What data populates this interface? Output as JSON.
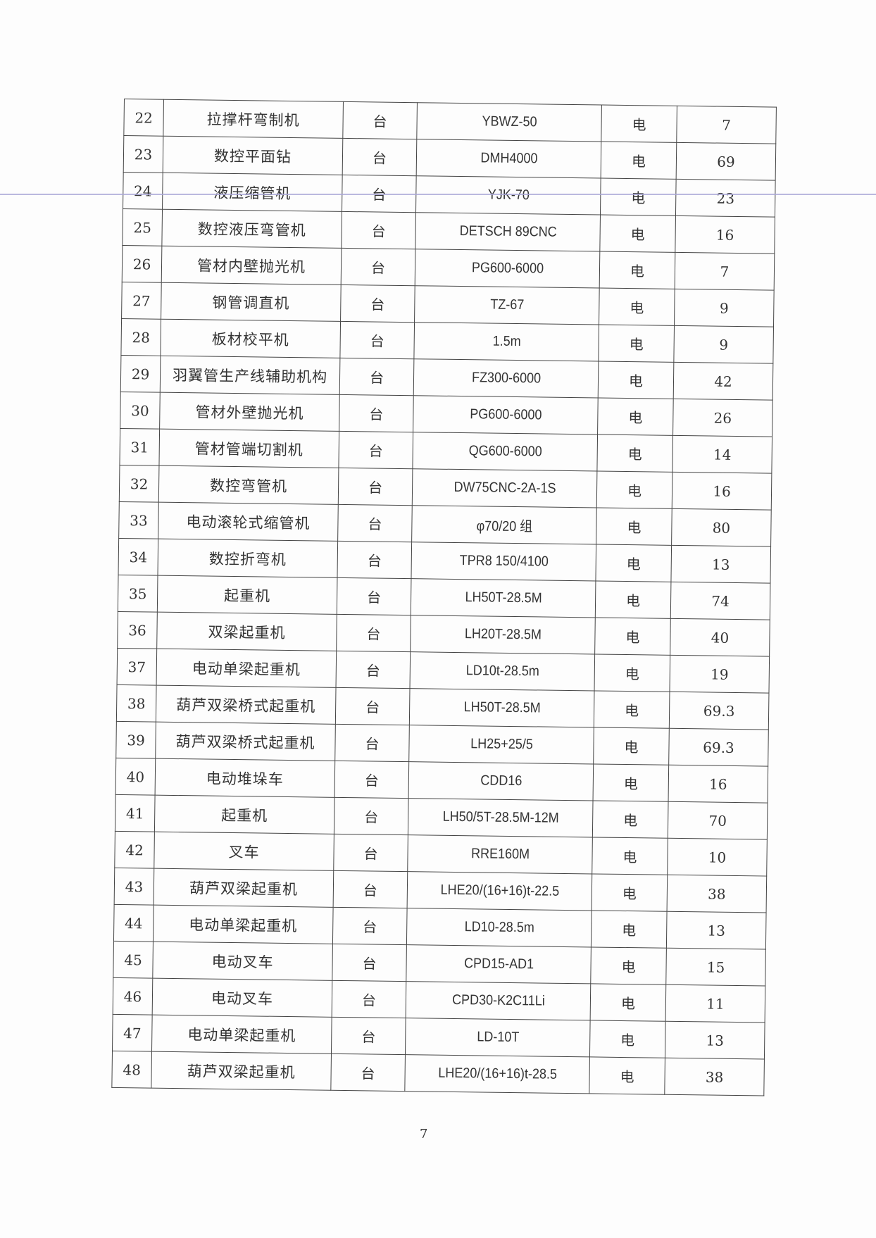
{
  "table": {
    "rows": [
      [
        "22",
        "拉撑杆弯制机",
        "台",
        "YBWZ-50",
        "电",
        "7"
      ],
      [
        "23",
        "数控平面钻",
        "台",
        "DMH4000",
        "电",
        "69"
      ],
      [
        "24",
        "液压缩管机",
        "台",
        "YJK-70",
        "电",
        "23"
      ],
      [
        "25",
        "数控液压弯管机",
        "台",
        "DETSCH 89CNC",
        "电",
        "16"
      ],
      [
        "26",
        "管材内壁抛光机",
        "台",
        "PG600-6000",
        "电",
        "7"
      ],
      [
        "27",
        "钢管调直机",
        "台",
        "TZ-67",
        "电",
        "9"
      ],
      [
        "28",
        "板材校平机",
        "台",
        "1.5m",
        "电",
        "9"
      ],
      [
        "29",
        "羽翼管生产线辅助机构",
        "台",
        "FZ300-6000",
        "电",
        "42"
      ],
      [
        "30",
        "管材外壁抛光机",
        "台",
        "PG600-6000",
        "电",
        "26"
      ],
      [
        "31",
        "管材管端切割机",
        "台",
        "QG600-6000",
        "电",
        "14"
      ],
      [
        "32",
        "数控弯管机",
        "台",
        "DW75CNC-2A-1S",
        "电",
        "16"
      ],
      [
        "33",
        "电动滚轮式缩管机",
        "台",
        "φ70/20 组",
        "电",
        "80"
      ],
      [
        "34",
        "数控折弯机",
        "台",
        "TPR8 150/4100",
        "电",
        "13"
      ],
      [
        "35",
        "起重机",
        "台",
        "LH50T-28.5M",
        "电",
        "74"
      ],
      [
        "36",
        "双梁起重机",
        "台",
        "LH20T-28.5M",
        "电",
        "40"
      ],
      [
        "37",
        "电动单梁起重机",
        "台",
        "LD10t-28.5m",
        "电",
        "19"
      ],
      [
        "38",
        "葫芦双梁桥式起重机",
        "台",
        "LH50T-28.5M",
        "电",
        "69.3"
      ],
      [
        "39",
        "葫芦双梁桥式起重机",
        "台",
        "LH25+25/5",
        "电",
        "69.3"
      ],
      [
        "40",
        "电动堆垛车",
        "台",
        "CDD16",
        "电",
        "16"
      ],
      [
        "41",
        "起重机",
        "台",
        "LH50/5T-28.5M-12M",
        "电",
        "70"
      ],
      [
        "42",
        "叉车",
        "台",
        "RRE160M",
        "电",
        "10"
      ],
      [
        "43",
        "葫芦双梁起重机",
        "台",
        "LHE20/(16+16)t-22.5",
        "电",
        "38"
      ],
      [
        "44",
        "电动单梁起重机",
        "台",
        "LD10-28.5m",
        "电",
        "13"
      ],
      [
        "45",
        "电动叉车",
        "台",
        "CPD15-AD1",
        "电",
        "15"
      ],
      [
        "46",
        "电动叉车",
        "台",
        "CPD30-K2C11Li",
        "电",
        "11"
      ],
      [
        "47",
        "电动单梁起重机",
        "台",
        "LD-10T",
        "电",
        "13"
      ],
      [
        "48",
        "葫芦双梁起重机",
        "台",
        "LHE20/(16+16)t-28.5",
        "电",
        "38"
      ]
    ]
  },
  "page_number": "7"
}
